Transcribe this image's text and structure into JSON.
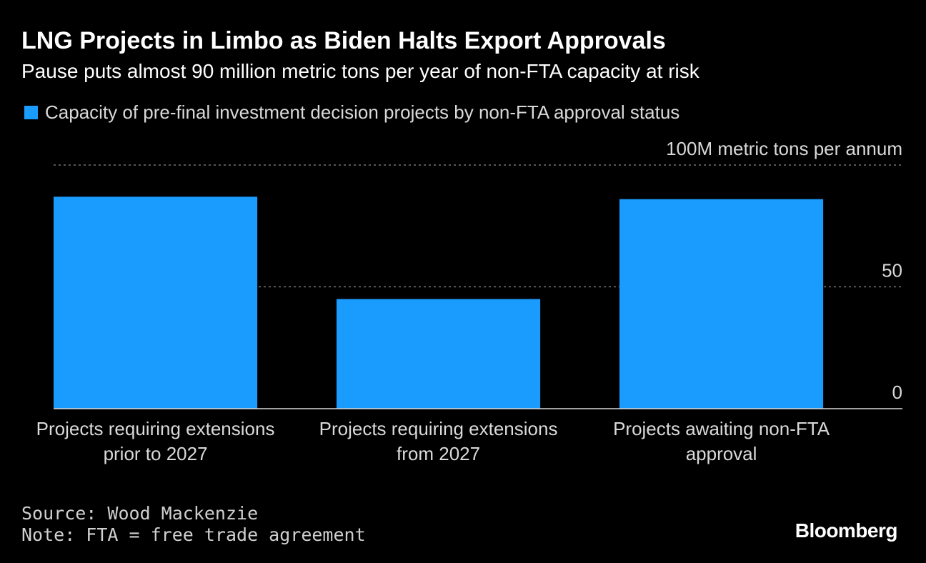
{
  "header": {
    "title": "LNG Projects in Limbo as Biden Halts Export Approvals",
    "subtitle": "Pause puts almost 90 million metric tons per year of non-FTA capacity at risk"
  },
  "legend": {
    "label": "Capacity of pre-final investment decision projects by non-FTA approval status",
    "color": "#1a9cff"
  },
  "footer": {
    "source": "Source: Wood Mackenzie",
    "note": "Note: FTA = free trade agreement",
    "brand": "Bloomberg"
  },
  "chart_data": {
    "type": "bar",
    "title": "LNG Projects in Limbo as Biden Halts Export Approvals",
    "ylabel": "100M metric tons per annum",
    "ylim": [
      0,
      100
    ],
    "yticks": [
      0,
      50,
      100
    ],
    "ytick_labels": [
      "0",
      "50",
      "100M metric tons per annum"
    ],
    "grid": true,
    "categories": [
      [
        "Projects requiring extensions",
        "prior to 2027"
      ],
      [
        "Projects requiring extensions",
        "from 2027"
      ],
      [
        "Projects awaiting non-FTA",
        "approval"
      ]
    ],
    "series": [
      {
        "name": "Capacity of pre-final investment decision projects by non-FTA approval status",
        "values": [
          87,
          45,
          86
        ],
        "color": "#1a9cff"
      }
    ]
  }
}
